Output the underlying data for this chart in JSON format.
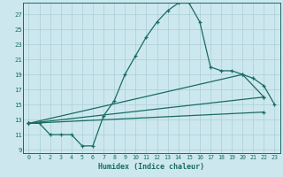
{
  "xlabel": "Humidex (Indice chaleur)",
  "xlim": [
    -0.5,
    23.5
  ],
  "ylim": [
    8.5,
    28.5
  ],
  "yticks": [
    9,
    11,
    13,
    15,
    17,
    19,
    21,
    23,
    25,
    27
  ],
  "xticks": [
    0,
    1,
    2,
    3,
    4,
    5,
    6,
    7,
    8,
    9,
    10,
    11,
    12,
    13,
    14,
    15,
    16,
    17,
    18,
    19,
    20,
    21,
    22,
    23
  ],
  "bg_color": "#cce8ee",
  "grid_color": "#aacdd6",
  "line_color": "#1a6b62",
  "line1_x": [
    0,
    1,
    2,
    3,
    4,
    5,
    6,
    7,
    8,
    9,
    10,
    11,
    12,
    13,
    14,
    15,
    16,
    17,
    18,
    19,
    20,
    21,
    22,
    23
  ],
  "line1_y": [
    12.5,
    12.5,
    11,
    11,
    11,
    9.5,
    9.5,
    13.5,
    15.5,
    19,
    21.5,
    24,
    26,
    27.5,
    28.5,
    28.5,
    26,
    20,
    19.5,
    19.5,
    19,
    18.5,
    17.5,
    15
  ],
  "line2_x": [
    0,
    22
  ],
  "line2_y": [
    12.5,
    16
  ],
  "line3_x": [
    0,
    20,
    22
  ],
  "line3_y": [
    12.5,
    19,
    16
  ],
  "line4_x": [
    0,
    22
  ],
  "line4_y": [
    12.5,
    14
  ],
  "figsize": [
    3.2,
    2.0
  ],
  "dpi": 100
}
